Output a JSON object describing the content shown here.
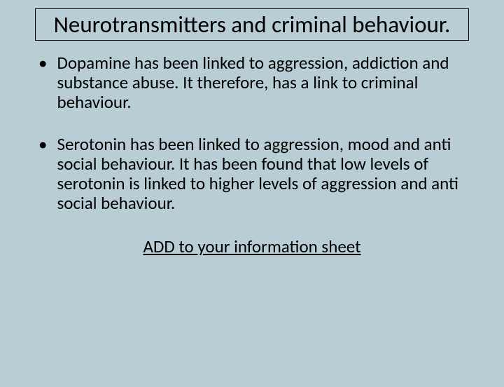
{
  "slide": {
    "title": "Neurotransmitters and criminal behaviour.",
    "bullets": [
      "Dopamine has been linked to aggression, addiction and substance abuse. It therefore, has a link to criminal behaviour.",
      "Serotonin has been linked to aggression, mood and anti social behaviour. It has been found that low levels of serotonin is linked to higher levels of aggression and anti social behaviour."
    ],
    "footer": "ADD to your information sheet"
  },
  "style": {
    "background_color": "#b8cdd4",
    "title_fontsize": 33,
    "body_fontsize": 25,
    "font_family": "Calibri, Arial, sans-serif",
    "text_color": "#000000",
    "border_color": "#000000",
    "bullet_char": "•"
  }
}
